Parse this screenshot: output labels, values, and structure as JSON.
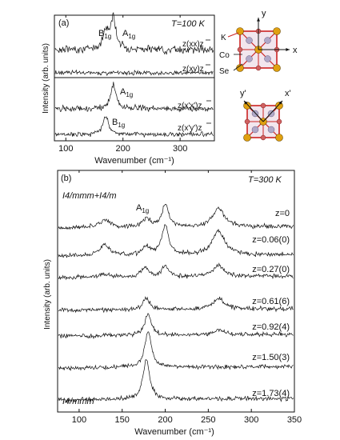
{
  "panel_a": {
    "label": "(a)",
    "temperature": "T=100 K",
    "peak_b1g": {
      "main": "B",
      "sub": "1g"
    },
    "peak_a1g": {
      "main": "A",
      "sub": "1g"
    },
    "peak_a1g_lower": {
      "main": "A",
      "sub": "1g"
    },
    "peak_b1g_lower": {
      "main": "B",
      "sub": "1g"
    },
    "geometry_labels": [
      "z(xx)z",
      "z(xy)z",
      "z(x'x')z",
      "z(x'y')z"
    ],
    "crystal_labels": {
      "y": "y",
      "x": "x",
      "k": "K",
      "co": "Co",
      "se": "Se",
      "yprime": "y'",
      "xprime": "x'"
    }
  },
  "panel_b": {
    "label": "(b)",
    "temperature": "T=300 K",
    "phase_top": "I4/mmm+I4/m",
    "phase_bottom": "I4/mmm",
    "peak_a1g": {
      "main": "A",
      "sub": "1g"
    }
  },
  "colors": {
    "trace": "#111111",
    "axis": "#111111",
    "crystal_bond": "#cc2222",
    "k_atom": "#e0a010",
    "se_atom": "#b0a8c8"
  },
  "chart_data": [
    {
      "type": "line",
      "title": "",
      "xlabel": "Wavenumber (cm⁻¹)",
      "ylabel": "Intensity (arb. units)",
      "xlim": [
        80,
        360
      ],
      "x_ticks": [
        "100",
        "200",
        "300"
      ],
      "grid": false,
      "series": [
        {
          "name": "z(xx)z",
          "peaks": [
            {
              "x": 170,
              "label": "B1g"
            },
            {
              "x": 183,
              "label": "A1g"
            }
          ]
        },
        {
          "name": "z(xy)z",
          "peaks": []
        },
        {
          "name": "z(x'x')z",
          "peaks": [
            {
              "x": 183,
              "label": "A1g"
            }
          ]
        },
        {
          "name": "z(x'y')z",
          "peaks": [
            {
              "x": 170,
              "label": "B1g"
            }
          ]
        }
      ]
    },
    {
      "type": "line",
      "title": "",
      "xlabel": "Wavenumber (cm⁻¹)",
      "ylabel": "Intensity (arb. units)",
      "xlim": [
        75,
        350
      ],
      "x_ticks": [
        "100",
        "150",
        "200",
        "250",
        "300",
        "350"
      ],
      "grid": false,
      "series": [
        {
          "name": "z=0",
          "peaks": [
            {
              "x": 130,
              "h": 0.25
            },
            {
              "x": 178,
              "h": 0.3
            },
            {
              "x": 200,
              "h": 0.75
            },
            {
              "x": 262,
              "h": 0.6
            }
          ]
        },
        {
          "name": "z=0.06(0)",
          "peaks": [
            {
              "x": 130,
              "h": 0.35
            },
            {
              "x": 178,
              "h": 0.3
            },
            {
              "x": 200,
              "h": 1.0
            },
            {
              "x": 262,
              "h": 0.8
            }
          ]
        },
        {
          "name": "z=0.27(0)",
          "peaks": [
            {
              "x": 130,
              "h": 0.1
            },
            {
              "x": 177,
              "h": 0.35
            },
            {
              "x": 200,
              "h": 0.35
            },
            {
              "x": 262,
              "h": 0.35
            }
          ]
        },
        {
          "name": "z=0.61(6)",
          "peaks": [
            {
              "x": 178,
              "h": 0.4
            },
            {
              "x": 262,
              "h": 0.35
            }
          ]
        },
        {
          "name": "z=0.92(4)",
          "peaks": [
            {
              "x": 180,
              "h": 0.7
            },
            {
              "x": 262,
              "h": 0.15
            }
          ]
        },
        {
          "name": "z=1.50(3)",
          "peaks": [
            {
              "x": 180,
              "h": 1.2
            }
          ]
        },
        {
          "name": "z=1.73(4)",
          "peaks": [
            {
              "x": 178,
              "h": 1.3
            }
          ]
        }
      ]
    }
  ]
}
